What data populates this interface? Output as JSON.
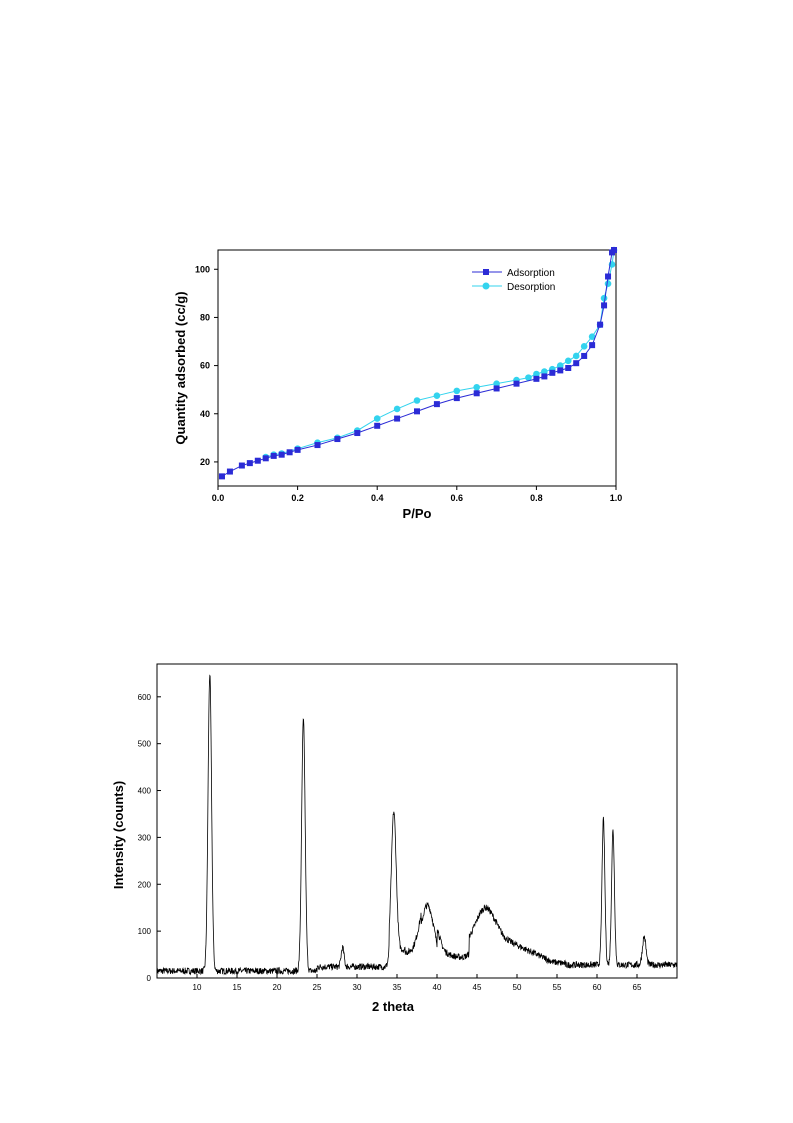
{
  "chart_data": [
    {
      "type": "line",
      "title": "",
      "xlabel": "P/Po",
      "ylabel": "Quantity adsorbed (cc/g)",
      "xlim": [
        0.0,
        1.0
      ],
      "ylim": [
        10,
        108
      ],
      "xticks": [
        0.0,
        0.2,
        0.4,
        0.6,
        0.8,
        1.0
      ],
      "xtick_labels": [
        "0.0",
        "0.2",
        "0.4",
        "0.6",
        "0.8",
        "1.0"
      ],
      "yticks": [
        20,
        40,
        60,
        80,
        100
      ],
      "grid": false,
      "legend_position": "top-right",
      "series": [
        {
          "name": "Adsorption",
          "color": "#2b2bd6",
          "marker": "square",
          "x": [
            0.01,
            0.03,
            0.06,
            0.08,
            0.1,
            0.12,
            0.14,
            0.16,
            0.18,
            0.2,
            0.25,
            0.3,
            0.35,
            0.4,
            0.45,
            0.5,
            0.55,
            0.6,
            0.65,
            0.7,
            0.75,
            0.8,
            0.82,
            0.84,
            0.86,
            0.88,
            0.9,
            0.92,
            0.94,
            0.96,
            0.97,
            0.98,
            0.99,
            0.995
          ],
          "y": [
            14,
            16,
            18.5,
            19.5,
            20.5,
            21.5,
            22.5,
            23,
            24,
            25,
            27,
            29.5,
            32,
            35,
            38,
            41,
            44,
            46.5,
            48.5,
            50.5,
            52.5,
            54.5,
            55.5,
            57,
            58,
            59,
            61,
            64,
            68.5,
            77,
            85,
            97,
            107,
            108
          ]
        },
        {
          "name": "Desorption",
          "color": "#33d3ee",
          "marker": "circle",
          "x": [
            0.12,
            0.14,
            0.16,
            0.2,
            0.25,
            0.3,
            0.35,
            0.4,
            0.45,
            0.5,
            0.55,
            0.6,
            0.65,
            0.7,
            0.75,
            0.78,
            0.8,
            0.82,
            0.84,
            0.86,
            0.88,
            0.9,
            0.92,
            0.94,
            0.96,
            0.97,
            0.98,
            0.99,
            0.995
          ],
          "y": [
            22,
            23,
            23.5,
            25.5,
            28,
            30,
            33,
            38,
            42,
            45.5,
            47.5,
            49.5,
            51,
            52.5,
            54,
            55,
            56.5,
            57.5,
            58.5,
            60,
            62,
            64,
            68,
            72,
            77,
            88,
            94,
            102,
            108
          ]
        }
      ]
    },
    {
      "type": "line",
      "title": "",
      "xlabel": "2 theta",
      "ylabel": "Intensity (counts)",
      "xlim": [
        5,
        70
      ],
      "ylim": [
        0,
        670
      ],
      "xticks": [
        10,
        15,
        20,
        25,
        30,
        35,
        40,
        45,
        50,
        55,
        60,
        65
      ],
      "yticks": [
        0,
        100,
        200,
        300,
        400,
        500,
        600
      ],
      "grid": false,
      "series": [
        {
          "color": "#000000",
          "peaks": [
            {
              "x": 11.6,
              "y": 648
            },
            {
              "x": 23.3,
              "y": 550
            },
            {
              "x": 28.2,
              "y": 65
            },
            {
              "x": 34.6,
              "y": 355
            },
            {
              "x": 38.8,
              "y": 155
            },
            {
              "x": 46.0,
              "y": 150
            },
            {
              "x": 60.8,
              "y": 337
            },
            {
              "x": 62.0,
              "y": 315
            },
            {
              "x": 65.9,
              "y": 88
            }
          ]
        }
      ]
    }
  ]
}
